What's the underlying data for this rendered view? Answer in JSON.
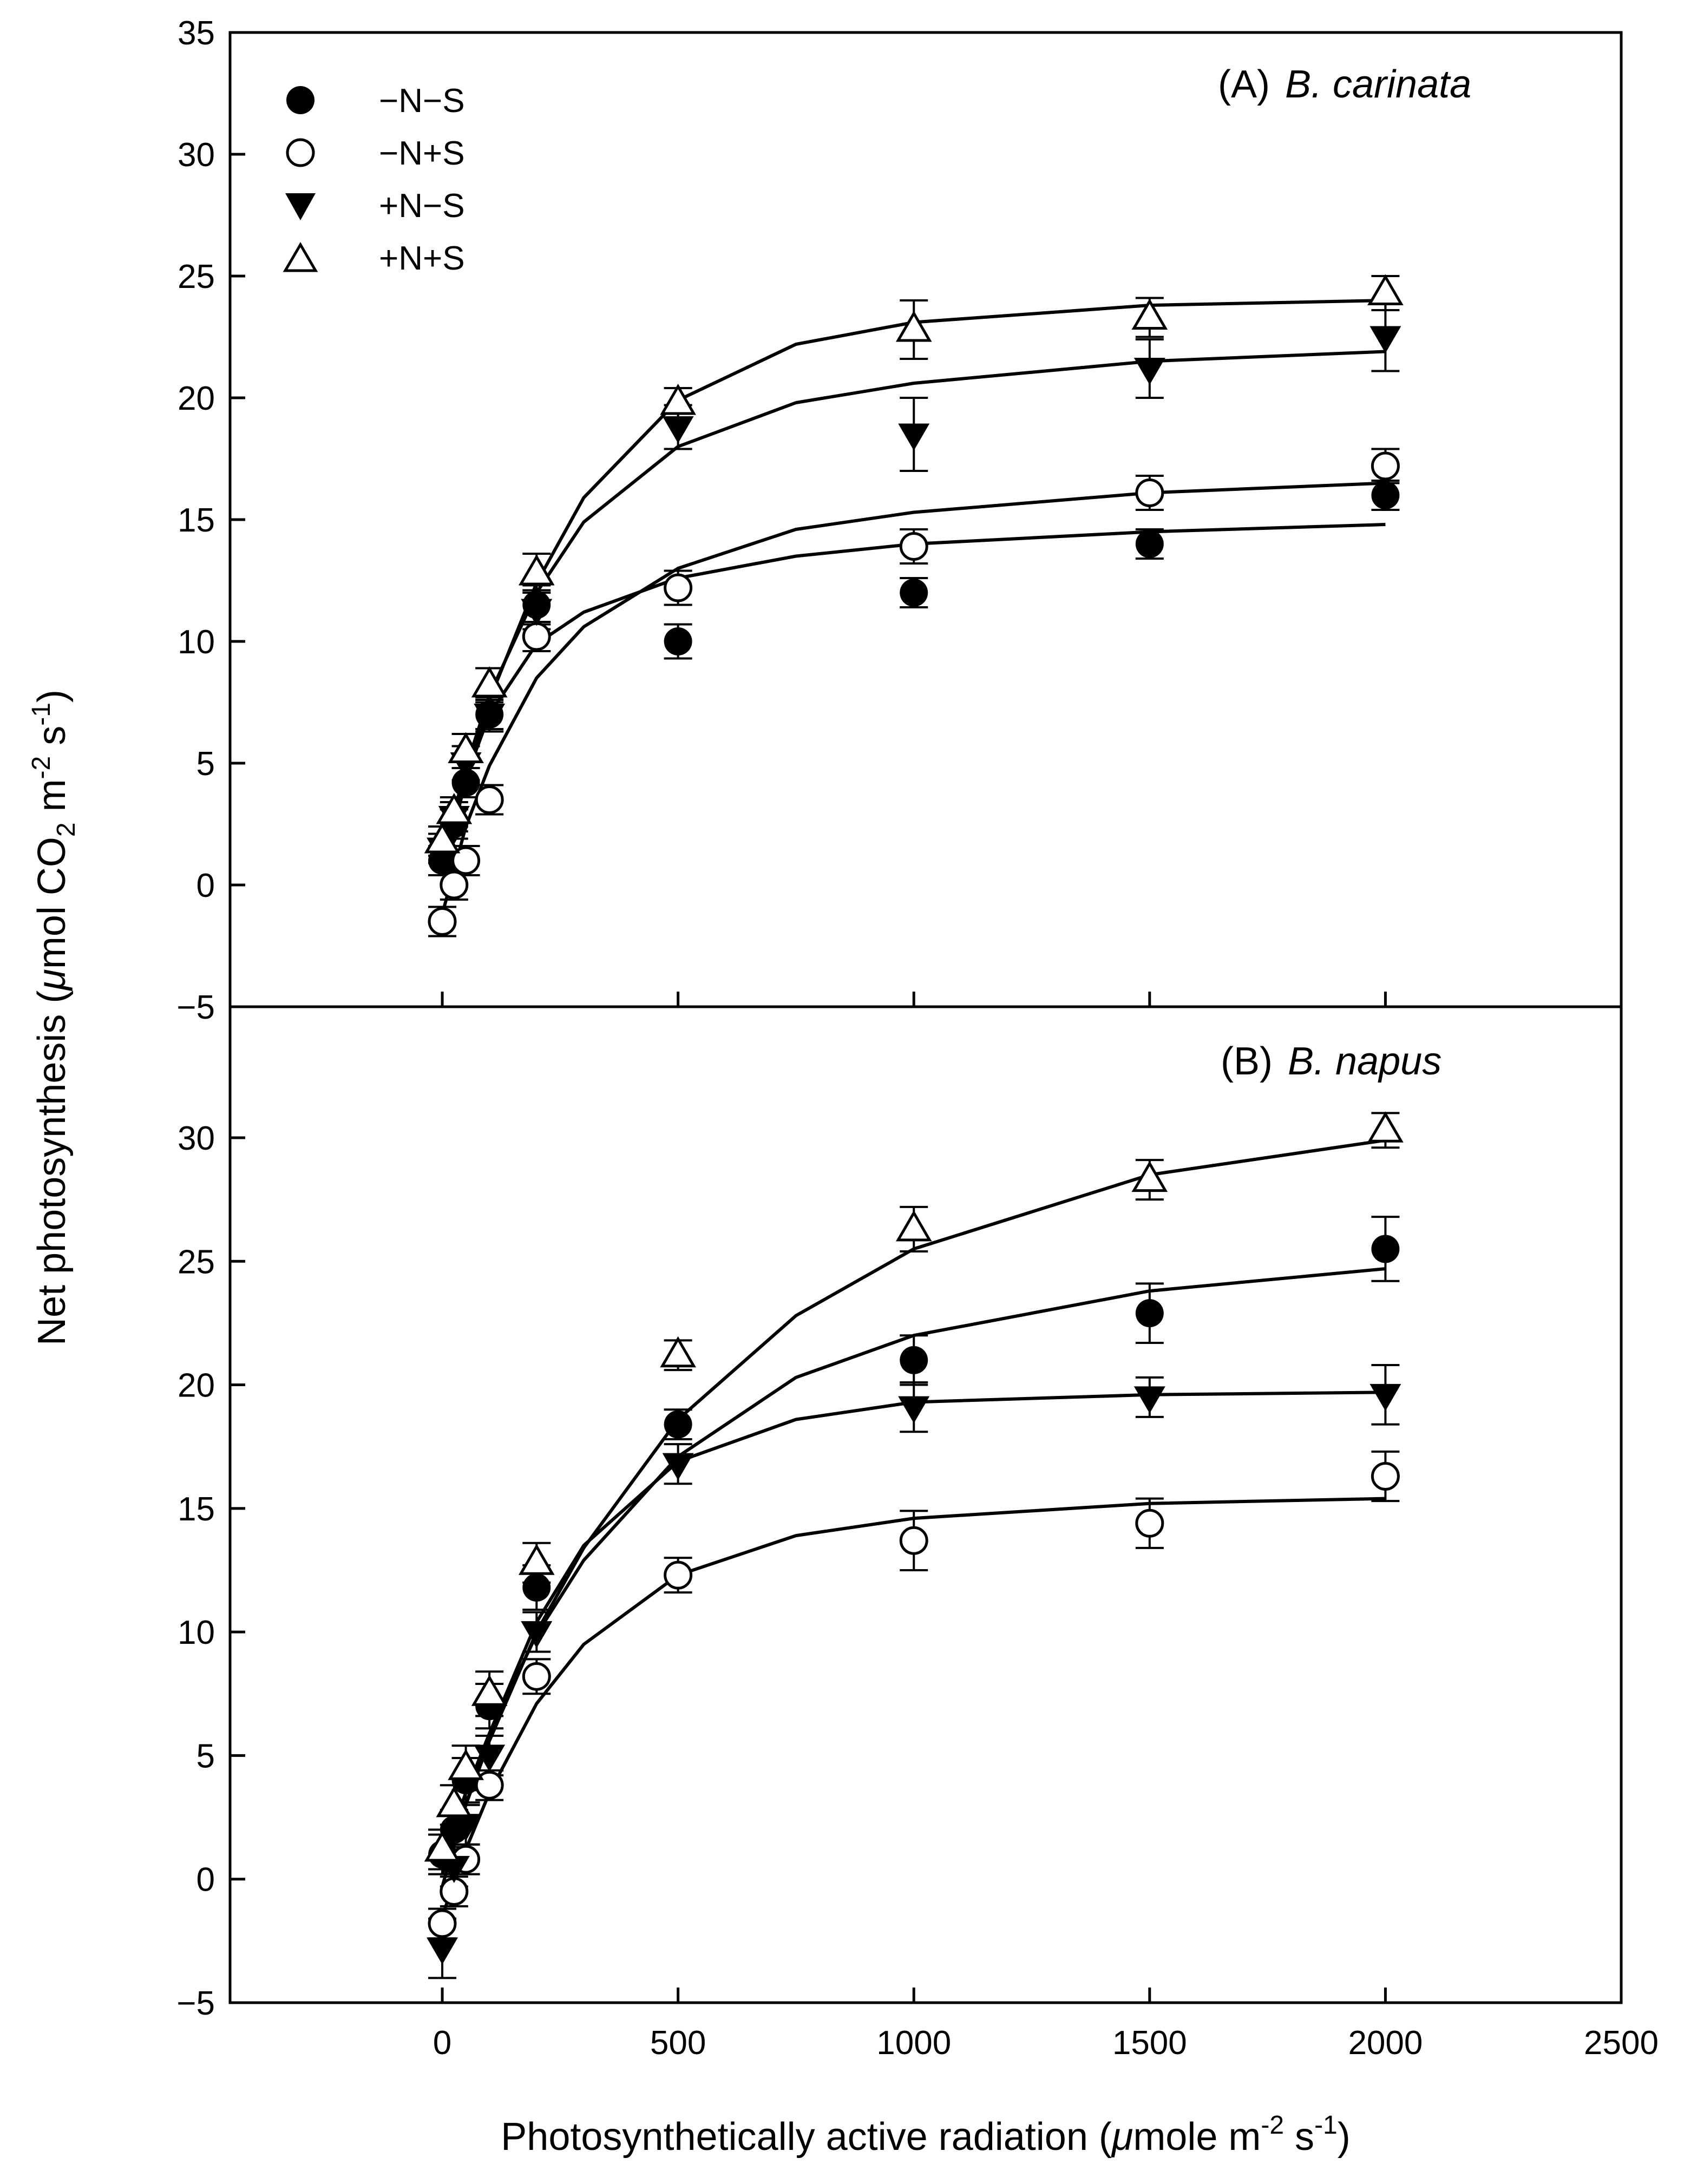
{
  "chart_data": [
    {
      "type": "scatter",
      "panel_label": "(A)",
      "title": "B. carinata",
      "xlim": [
        -450,
        2500
      ],
      "ylim": [
        -5,
        35
      ],
      "x_ticks": [
        "0",
        "500",
        "1000",
        "1500",
        "2000",
        "2500"
      ],
      "x_tick_values": [
        0,
        500,
        1000,
        1500,
        2000,
        2500
      ],
      "y_ticks": [
        "-5",
        "0",
        "5",
        "10",
        "15",
        "20",
        "25",
        "30",
        "35"
      ],
      "y_tick_values": [
        -5,
        0,
        5,
        10,
        15,
        20,
        25,
        30,
        35
      ],
      "legend_position": "top-left",
      "series": [
        {
          "name": "−N−S",
          "marker": "filled-circle",
          "x": [
            0,
            25,
            50,
            100,
            200,
            500,
            1000,
            1500,
            2000
          ],
          "y": [
            1.0,
            2.5,
            4.2,
            7.0,
            11.5,
            10.0,
            12.0,
            14.0,
            16.0
          ],
          "err": [
            0.6,
            0.6,
            0.6,
            0.6,
            0.8,
            0.7,
            0.6,
            0.6,
            0.6
          ],
          "fit": [
            [
              0,
              0.5
            ],
            [
              50,
              4.4
            ],
            [
              100,
              7.0
            ],
            [
              200,
              9.9
            ],
            [
              300,
              11.2
            ],
            [
              500,
              12.6
            ],
            [
              750,
              13.5
            ],
            [
              1000,
              14.0
            ],
            [
              1500,
              14.5
            ],
            [
              2000,
              14.8
            ]
          ]
        },
        {
          "name": "−N+S",
          "marker": "open-circle",
          "x": [
            0,
            25,
            50,
            100,
            200,
            500,
            1000,
            1500,
            2000
          ],
          "y": [
            -1.5,
            0.0,
            1.0,
            3.5,
            10.2,
            12.2,
            13.9,
            16.1,
            17.2
          ],
          "err": [
            0.6,
            0.6,
            0.6,
            0.6,
            0.6,
            0.7,
            0.7,
            0.7,
            0.7
          ],
          "fit": [
            [
              0,
              -1.2
            ],
            [
              50,
              2.4
            ],
            [
              100,
              4.9
            ],
            [
              200,
              8.5
            ],
            [
              300,
              10.6
            ],
            [
              500,
              13.0
            ],
            [
              750,
              14.6
            ],
            [
              1000,
              15.3
            ],
            [
              1500,
              16.1
            ],
            [
              2000,
              16.5
            ]
          ]
        },
        {
          "name": "+N−S",
          "marker": "filled-triangle-down",
          "x": [
            0,
            25,
            50,
            100,
            200,
            500,
            1000,
            1500,
            2000
          ],
          "y": [
            1.5,
            2.8,
            5.0,
            7.0,
            11.3,
            18.8,
            18.5,
            21.2,
            22.5
          ],
          "err": [
            0.6,
            0.6,
            0.7,
            0.7,
            0.8,
            0.9,
            1.5,
            1.2,
            1.4
          ],
          "fit": [
            [
              0,
              1.2
            ],
            [
              50,
              4.8
            ],
            [
              100,
              7.8
            ],
            [
              200,
              12.0
            ],
            [
              300,
              14.9
            ],
            [
              500,
              18.0
            ],
            [
              750,
              19.8
            ],
            [
              1000,
              20.6
            ],
            [
              1500,
              21.5
            ],
            [
              2000,
              21.9
            ]
          ]
        },
        {
          "name": "+N+S",
          "marker": "open-triangle-up",
          "x": [
            0,
            25,
            50,
            100,
            200,
            500,
            1000,
            1500,
            2000
          ],
          "y": [
            1.8,
            3.0,
            5.5,
            8.2,
            12.8,
            19.8,
            22.8,
            23.3,
            24.3
          ],
          "err": [
            0.6,
            0.6,
            0.7,
            0.7,
            0.8,
            0.6,
            1.2,
            0.8,
            0.7
          ],
          "fit": [
            [
              0,
              0.5
            ],
            [
              50,
              4.3
            ],
            [
              100,
              7.6
            ],
            [
              200,
              12.4
            ],
            [
              300,
              15.9
            ],
            [
              500,
              19.9
            ],
            [
              750,
              22.2
            ],
            [
              1000,
              23.1
            ],
            [
              1500,
              23.8
            ],
            [
              2000,
              24.0
            ]
          ]
        }
      ]
    },
    {
      "type": "scatter",
      "panel_label": "(B)",
      "title": "B. napus",
      "xlabel_prefix": "Photosynthetically active radiation (",
      "xlabel_mu": "μ",
      "xlabel_mid": "mole m",
      "xlabel_sup1": "-2",
      "xlabel_mid2": " s",
      "xlabel_sup2": "-1",
      "xlabel_suffix": ")",
      "xlim": [
        -450,
        2500
      ],
      "ylim": [
        -5,
        35
      ],
      "x_ticks": [
        "0",
        "500",
        "1000",
        "1500",
        "2000",
        "2500"
      ],
      "x_tick_values": [
        0,
        500,
        1000,
        1500,
        2000,
        2500
      ],
      "y_ticks": [
        "-5",
        "0",
        "5",
        "10",
        "15",
        "20",
        "25",
        "30"
      ],
      "y_tick_values": [
        -5,
        0,
        5,
        10,
        15,
        20,
        25,
        30
      ],
      "series": [
        {
          "name": "−N−S",
          "marker": "filled-circle",
          "x": [
            0,
            25,
            50,
            100,
            200,
            500,
            1000,
            1500,
            2000
          ],
          "y": [
            1.0,
            2.0,
            4.0,
            7.0,
            11.8,
            18.4,
            21.0,
            22.9,
            25.5
          ],
          "err": [
            0.8,
            0.8,
            0.9,
            0.9,
            0.9,
            0.6,
            1.0,
            1.2,
            1.3
          ],
          "fit": [
            [
              0,
              0.8
            ],
            [
              50,
              3.5
            ],
            [
              100,
              5.9
            ],
            [
              200,
              9.9
            ],
            [
              300,
              12.9
            ],
            [
              500,
              17.1
            ],
            [
              750,
              20.3
            ],
            [
              1000,
              22.0
            ],
            [
              1500,
              23.8
            ],
            [
              2000,
              24.7
            ]
          ]
        },
        {
          "name": "−N+S",
          "marker": "open-circle",
          "x": [
            0,
            25,
            50,
            100,
            200,
            500,
            1000,
            1500,
            2000
          ],
          "y": [
            -1.8,
            -0.5,
            0.8,
            3.8,
            8.2,
            12.3,
            13.7,
            14.4,
            16.3
          ],
          "err": [
            0.6,
            0.6,
            0.6,
            0.6,
            0.7,
            0.7,
            1.2,
            1.0,
            1.0
          ],
          "fit": [
            [
              0,
              -1.5
            ],
            [
              50,
              1.2
            ],
            [
              100,
              3.5
            ],
            [
              200,
              7.1
            ],
            [
              300,
              9.5
            ],
            [
              500,
              12.3
            ],
            [
              750,
              13.9
            ],
            [
              1000,
              14.6
            ],
            [
              1500,
              15.2
            ],
            [
              2000,
              15.4
            ]
          ]
        },
        {
          "name": "+N−S",
          "marker": "filled-triangle-down",
          "x": [
            0,
            25,
            50,
            100,
            200,
            500,
            1000,
            1500,
            2000
          ],
          "y": [
            -2.8,
            0.5,
            2.2,
            5.0,
            10.0,
            16.8,
            19.1,
            19.5,
            19.6
          ],
          "err": [
            1.2,
            0.8,
            0.8,
            0.8,
            0.8,
            0.8,
            1.0,
            0.8,
            1.2
          ],
          "fit": [
            [
              0,
              -0.3
            ],
            [
              50,
              3.0
            ],
            [
              100,
              5.9
            ],
            [
              200,
              10.4
            ],
            [
              300,
              13.5
            ],
            [
              500,
              16.9
            ],
            [
              750,
              18.6
            ],
            [
              1000,
              19.3
            ],
            [
              1500,
              19.6
            ],
            [
              2000,
              19.7
            ]
          ]
        },
        {
          "name": "+N+S",
          "marker": "open-triangle-up",
          "x": [
            0,
            25,
            50,
            100,
            200,
            500,
            1000,
            1500,
            2000
          ],
          "y": [
            1.2,
            3.0,
            4.5,
            7.5,
            12.8,
            21.2,
            26.3,
            28.3,
            30.3
          ],
          "err": [
            0.8,
            0.8,
            0.9,
            0.9,
            0.8,
            0.6,
            0.9,
            0.8,
            0.7
          ],
          "fit": [
            [
              0,
              0.2
            ],
            [
              50,
              3.0
            ],
            [
              100,
              5.6
            ],
            [
              200,
              10.0
            ],
            [
              300,
              13.4
            ],
            [
              500,
              18.6
            ],
            [
              750,
              22.8
            ],
            [
              1000,
              25.5
            ],
            [
              1500,
              28.5
            ],
            [
              2000,
              29.9
            ]
          ]
        }
      ]
    }
  ],
  "ylabel": {
    "prefix": "Net photosynthesis (",
    "mu": "μ",
    "mid": "mol CO",
    "sub": "2",
    "mid2": " m",
    "sup1": "-2",
    "mid3": " s",
    "sup2": "-1",
    "suffix": ")"
  },
  "legend": {
    "entries": [
      "−N−S",
      "−N+S",
      "+N−S",
      "+N+S"
    ]
  }
}
